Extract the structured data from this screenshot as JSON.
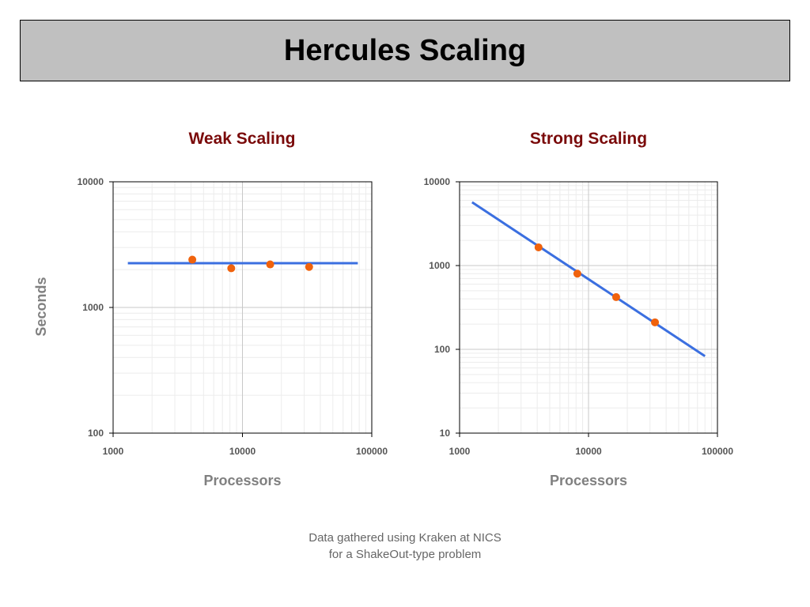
{
  "page": {
    "title": "Hercules Scaling",
    "footer_line1": "Data gathered using Kraken at NICS",
    "footer_line2": "for a ShakeOut-type problem"
  },
  "colors": {
    "title_bar": "#c0c0c0",
    "chart_title": "#7a0a0a",
    "fit_line": "#3b6fe0",
    "points": "#f0620c",
    "axis_label": "#808080"
  },
  "chart_data": [
    {
      "type": "scatter",
      "title": "Weak Scaling",
      "xlabel": "Processors",
      "ylabel": "Seconds",
      "xscale": "log",
      "yscale": "log",
      "xlim": [
        1000,
        100000
      ],
      "ylim": [
        100,
        10000
      ],
      "x_ticks": [
        "1000",
        "10000",
        "100000"
      ],
      "y_ticks": [
        "100",
        "1000",
        "10000"
      ],
      "grid": true,
      "series": [
        {
          "kind": "points",
          "x": [
            4096,
            8192,
            16384,
            32768
          ],
          "y": [
            2400,
            2050,
            2200,
            2100
          ]
        },
        {
          "kind": "fit_line",
          "x": [
            1300,
            78000
          ],
          "y": [
            2250,
            2250
          ]
        }
      ]
    },
    {
      "type": "scatter",
      "title": "Strong Scaling",
      "xlabel": "Processors",
      "ylabel": "",
      "xscale": "log",
      "yscale": "log",
      "xlim": [
        1000,
        100000
      ],
      "ylim": [
        10,
        10000
      ],
      "x_ticks": [
        "1000",
        "10000",
        "100000"
      ],
      "y_ticks": [
        "10",
        "100",
        "1000",
        "10000"
      ],
      "grid": true,
      "series": [
        {
          "kind": "points",
          "x": [
            4096,
            8192,
            16384,
            32768
          ],
          "y": [
            1650,
            800,
            420,
            210
          ]
        },
        {
          "kind": "fit_line",
          "x": [
            1250,
            80000
          ],
          "y": [
            5700,
            83
          ]
        }
      ]
    }
  ]
}
